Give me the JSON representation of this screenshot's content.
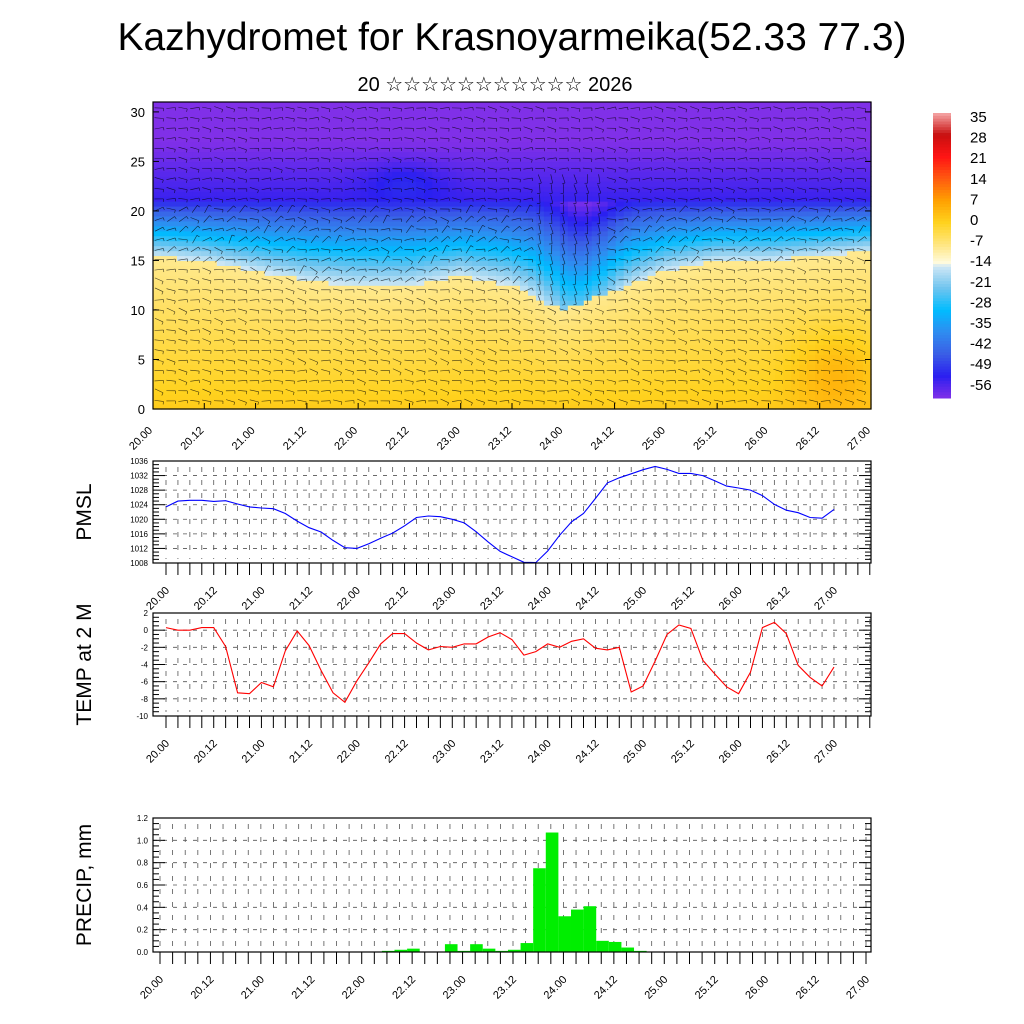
{
  "title": "Kazhydromet for Krasnoyarmeika(52.33 77.3)",
  "subtitle": "20 ☆☆☆☆☆☆☆☆☆☆☆ 2026",
  "time_labels": [
    "20.00",
    "20.12",
    "21.00",
    "21.12",
    "22.00",
    "22.12",
    "23.00",
    "23.12",
    "24.00",
    "24.12",
    "25.00",
    "25.12",
    "26.00",
    "26.12",
    "27.00"
  ],
  "chart_data": [
    {
      "type": "heatmap",
      "name": "cross-section",
      "ylabel": "",
      "ylim": [
        0,
        31
      ],
      "yticks": [
        0,
        5,
        10,
        15,
        20,
        25,
        30
      ],
      "colorbar": {
        "labels": [
          "35",
          "28",
          "21",
          "14",
          "7",
          "0",
          "-7",
          "-14",
          "-21",
          "-28",
          "-35",
          "-42",
          "-49",
          "-56"
        ],
        "colors": {
          "-56": "#8030e8",
          "-49": "#2a1ff0",
          "-42": "#3a5ee6",
          "-35": "#2f8cf0",
          "-28": "#00bcff",
          "-21": "#6fc4ef",
          "-14": "#cfe7f5",
          "-13": "#fffbe0",
          "-7": "#ffe680",
          "0": "#ffd21e",
          "7": "#ffa000",
          "14": "#ff5a10",
          "21": "#ff1414",
          "28": "#c81010",
          "35": "#f6a8a8"
        }
      },
      "estimated_fields": {
        "cold_layer_base": [
          15.5,
          15,
          14,
          13,
          12.5,
          12.5,
          13.5,
          12.5,
          10,
          12,
          14,
          15,
          15,
          15.5,
          16
        ],
        "upper_layer_base": [
          21,
          21,
          21,
          21,
          21,
          21,
          21,
          21,
          21,
          21,
          21,
          21,
          21,
          21,
          21
        ]
      }
    },
    {
      "type": "line",
      "name": "pmsl",
      "ylabel": "PMSL",
      "ylim": [
        1008,
        1036
      ],
      "yticks": [
        1008,
        1012,
        1016,
        1020,
        1024,
        1028,
        1032,
        1036
      ],
      "color": "#0000ff",
      "step_hours": 3,
      "values": [
        1023.4,
        1025.0,
        1025.2,
        1025.2,
        1024.9,
        1025.1,
        1024.2,
        1023.4,
        1023.1,
        1022.9,
        1021.6,
        1019.5,
        1017.7,
        1016.5,
        1014.2,
        1012.2,
        1012.0,
        1013.3,
        1014.8,
        1016.2,
        1018.2,
        1020.5,
        1020.9,
        1020.7,
        1020.0,
        1019.0,
        1016.6,
        1013.8,
        1011.2,
        1009.7,
        1008.2,
        1008.1,
        1011.3,
        1015.6,
        1019.3,
        1021.6,
        1025.7,
        1030.0,
        1031.4,
        1032.5,
        1033.6,
        1034.5,
        1033.7,
        1032.6,
        1032.6,
        1032.0,
        1030.6,
        1029.1,
        1028.6,
        1028.0,
        1026.5,
        1024.1,
        1022.5,
        1021.8,
        1020.5,
        1020.3,
        1022.7
      ]
    },
    {
      "type": "line",
      "name": "temp",
      "ylabel": "TEMP at 2 M",
      "ylim": [
        -10,
        2
      ],
      "yticks": [
        -10,
        -8,
        -6,
        -4,
        -2,
        0,
        2
      ],
      "color": "#ff0000",
      "step_hours": 3,
      "values": [
        0.3,
        0.0,
        0.0,
        0.3,
        0.3,
        -1.9,
        -7.3,
        -7.4,
        -6.1,
        -6.6,
        -2.4,
        -0.1,
        -1.8,
        -4.7,
        -7.3,
        -8.4,
        -5.9,
        -3.8,
        -1.6,
        -0.4,
        -0.4,
        -1.5,
        -2.3,
        -1.9,
        -2.0,
        -1.6,
        -1.6,
        -0.8,
        -0.3,
        -1.1,
        -2.9,
        -2.5,
        -1.6,
        -2.0,
        -1.3,
        -1.0,
        -2.1,
        -2.3,
        -2.0,
        -7.2,
        -6.5,
        -3.6,
        -0.5,
        0.6,
        0.2,
        -3.5,
        -5.1,
        -6.6,
        -7.4,
        -4.9,
        0.3,
        0.9,
        -0.4,
        -4.1,
        -5.5,
        -6.5,
        -4.3
      ]
    },
    {
      "type": "bar",
      "name": "precip",
      "ylabel": "PRECIP, mm",
      "ylim": [
        0,
        1.2
      ],
      "yticks": [
        0.0,
        0.2,
        0.4,
        0.6,
        0.8,
        1.0,
        1.2
      ],
      "ytick_labels": [
        "0.0",
        "0.2",
        "0.4",
        "0.6",
        "0.8",
        "1.0",
        "1.2"
      ],
      "color": "#00ee00",
      "step_hours": 3,
      "start_index": 18,
      "values": [
        0.01,
        0.02,
        0.03,
        0,
        0,
        0.07,
        0.01,
        0.07,
        0.03,
        0.01,
        0.02,
        0.08,
        0.75,
        1.07,
        0.32,
        0.38,
        0.41,
        0.1,
        0.09,
        0.04,
        0.01
      ]
    }
  ]
}
